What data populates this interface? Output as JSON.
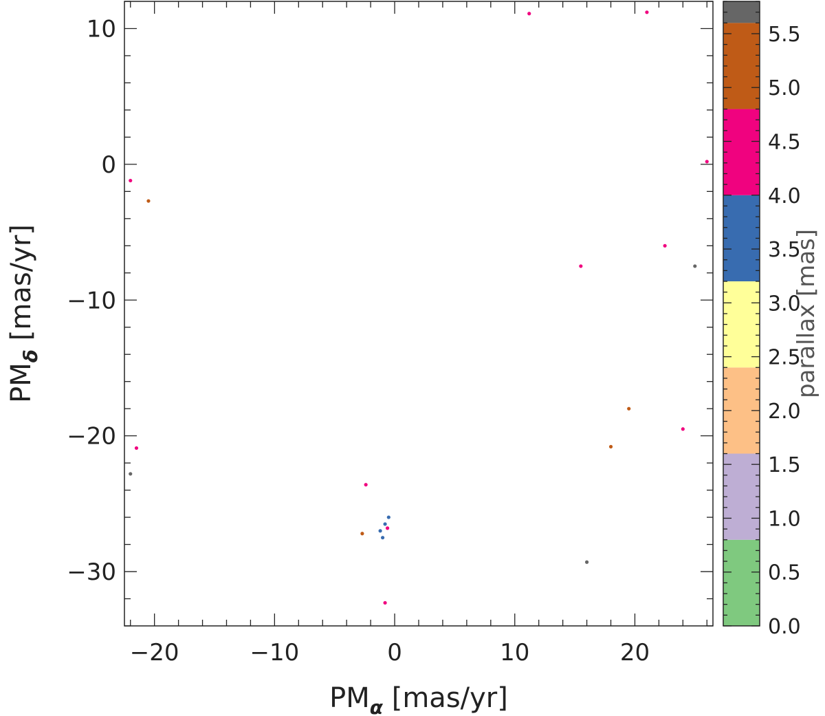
{
  "chart_data": {
    "type": "scatter",
    "title": "",
    "xlabel": {
      "main": "PM",
      "sub": "α",
      "unit": " [mas/yr]"
    },
    "ylabel": {
      "main": "PM",
      "sub": "δ",
      "unit": " [mas/yr]"
    },
    "xlim": [
      -22.5,
      26.5
    ],
    "ylim": [
      -34,
      12
    ],
    "xticks": [
      -20,
      -10,
      0,
      10,
      20
    ],
    "xtick_labels": [
      "−20",
      "−10",
      "0",
      "10",
      "20"
    ],
    "yticks": [
      10,
      0,
      -10,
      -20,
      -30
    ],
    "ytick_labels": [
      "10",
      "0",
      "−10",
      "−20",
      "−30"
    ],
    "grid": false,
    "colorbar": {
      "title": "parallax [mas]",
      "range": [
        0.0,
        5.8
      ],
      "bins": [
        {
          "from": 0.0,
          "to": 0.8,
          "color": "#7fc97f"
        },
        {
          "from": 0.8,
          "to": 1.6,
          "color": "#beaed4"
        },
        {
          "from": 1.6,
          "to": 2.4,
          "color": "#fdc086"
        },
        {
          "from": 2.4,
          "to": 3.2,
          "color": "#ffff99"
        },
        {
          "from": 3.2,
          "to": 4.0,
          "color": "#386cb0"
        },
        {
          "from": 4.0,
          "to": 4.8,
          "color": "#f0027f"
        },
        {
          "from": 4.8,
          "to": 5.6,
          "color": "#bf5b17"
        },
        {
          "from": 5.6,
          "to": 6.4,
          "color": "#666666"
        }
      ],
      "ticks": [
        0.0,
        0.5,
        1.0,
        1.5,
        2.0,
        2.5,
        3.0,
        3.5,
        4.0,
        4.5,
        5.0,
        5.5
      ],
      "tick_labels": [
        "0.0",
        "0.5",
        "1.0",
        "1.5",
        "2.0",
        "2.5",
        "3.0",
        "3.5",
        "4.0",
        "4.5",
        "5.0",
        "5.5"
      ]
    },
    "series": [
      {
        "values": [
          {
            "x": -0.8,
            "y": -26.5,
            "parallax": 3.5
          },
          {
            "x": -1.2,
            "y": -27.0,
            "parallax": 3.5
          },
          {
            "x": -0.5,
            "y": -26.0,
            "parallax": 3.5
          },
          {
            "x": -1.0,
            "y": -27.5,
            "parallax": 3.5
          },
          {
            "x": -0.6,
            "y": -26.8,
            "parallax": 4.2
          },
          {
            "x": -2.4,
            "y": -23.6,
            "parallax": 4.2
          },
          {
            "x": -2.7,
            "y": -27.2,
            "parallax": 5.0
          },
          {
            "x": -0.8,
            "y": -32.3,
            "parallax": 4.2
          },
          {
            "x": -21.5,
            "y": -20.9,
            "parallax": 4.2
          },
          {
            "x": -22.0,
            "y": -1.2,
            "parallax": 4.2
          },
          {
            "x": -20.5,
            "y": -2.7,
            "parallax": 5.0
          },
          {
            "x": -22.0,
            "y": -22.8,
            "parallax": 5.8
          },
          {
            "x": 16.0,
            "y": -29.3,
            "parallax": 5.8
          },
          {
            "x": 25.0,
            "y": -7.5,
            "parallax": 5.8
          },
          {
            "x": 26.0,
            "y": 0.2,
            "parallax": 4.2
          },
          {
            "x": 21.0,
            "y": 11.2,
            "parallax": 4.2
          },
          {
            "x": 11.2,
            "y": 11.1,
            "parallax": 4.2
          },
          {
            "x": 15.5,
            "y": -7.5,
            "parallax": 4.2
          },
          {
            "x": 19.5,
            "y": -18.0,
            "parallax": 5.0
          },
          {
            "x": 18.0,
            "y": -20.8,
            "parallax": 5.0
          },
          {
            "x": 24.0,
            "y": -19.5,
            "parallax": 4.2
          },
          {
            "x": 22.5,
            "y": -6.0,
            "parallax": 4.2
          }
        ]
      }
    ]
  }
}
